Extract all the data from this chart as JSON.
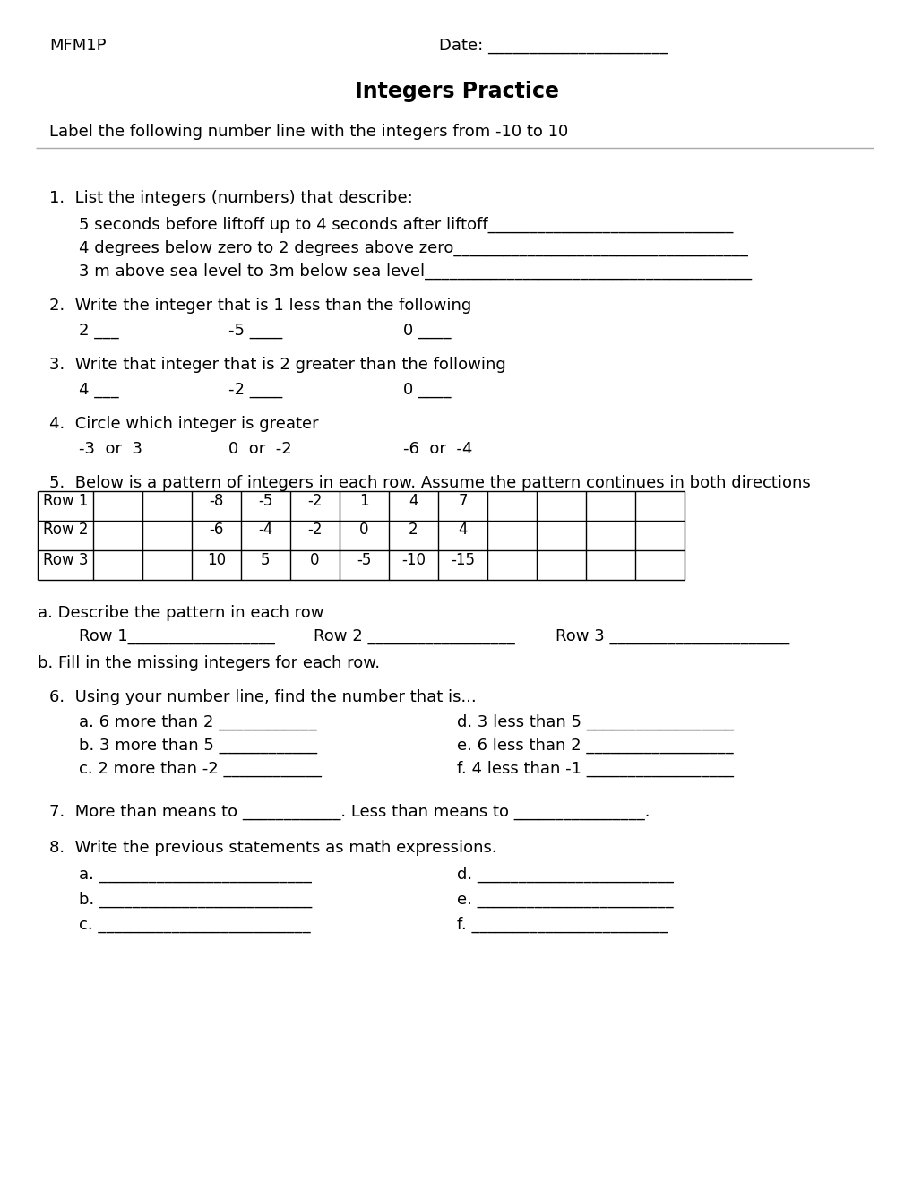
{
  "title": "Integers Practice",
  "header_left": "MFM1P",
  "header_right": "Date: ______________________",
  "subtitle": "Label the following number line with the integers from -10 to 10",
  "bg_color": "#ffffff",
  "text_color": "#000000",
  "table_rows": [
    [
      "Row 1",
      "",
      "",
      "-8",
      "-5",
      "-2",
      "1",
      "4",
      "7",
      "",
      "",
      "",
      ""
    ],
    [
      "Row 2",
      "",
      "",
      "-6",
      "-4",
      "-2",
      "0",
      "2",
      "4",
      "",
      "",
      "",
      ""
    ],
    [
      "Row 3",
      "",
      "",
      "10",
      "5",
      "0",
      "-5",
      "-10",
      "-15",
      "",
      "",
      "",
      ""
    ]
  ],
  "q6_items_left": [
    "a. 6 more than 2 ____________",
    "b. 3 more than 5 ____________",
    "c. 2 more than -2 ____________"
  ],
  "q6_items_right": [
    "d. 3 less than 5 __________________",
    "e. 6 less than 2 __________________",
    "f. 4 less than -1 __________________"
  ],
  "q8_left": [
    "a. __________________________",
    "b. __________________________",
    "c. __________________________"
  ],
  "q8_right": [
    "d. ________________________",
    "e. ________________________",
    "f. ________________________"
  ]
}
